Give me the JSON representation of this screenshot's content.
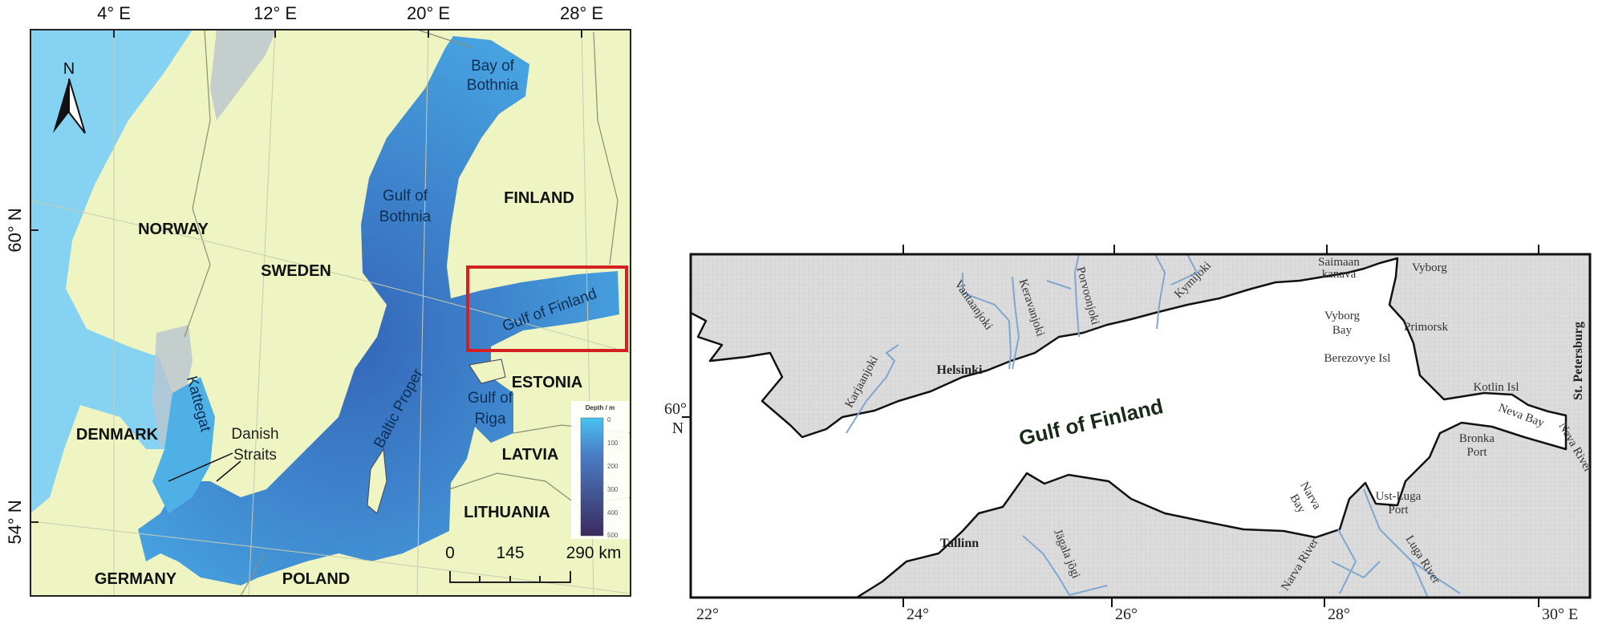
{
  "overview_map": {
    "longitude_ticks": [
      "4° E",
      "12° E",
      "20° E",
      "28° E"
    ],
    "latitude_ticks": [
      "60° N",
      "54° N"
    ],
    "north_arrow": "N",
    "countries": [
      "NORWAY",
      "SWEDEN",
      "FINLAND",
      "ESTONIA",
      "LATVIA",
      "LITHUANIA",
      "DENMARK",
      "GERMANY",
      "POLAND"
    ],
    "water_bodies": {
      "bay_of_bothnia": [
        "Bay of",
        "Bothnia"
      ],
      "gulf_of_bothnia": [
        "Gulf of",
        "Bothnia"
      ],
      "gulf_of_finland": "Gulf of Finland",
      "gulf_of_riga": [
        "Gulf of",
        "Riga"
      ],
      "baltic_proper": "Baltic Proper",
      "kattegat": "Kattegat",
      "danish_straits": [
        "Danish",
        "Straits"
      ]
    },
    "legend": {
      "title": "Depth / m",
      "ticks": [
        "0",
        "100",
        "200",
        "300",
        "400",
        "500"
      ],
      "color_min": "#49c3f0",
      "color_max": "#3b2a5e"
    },
    "scale_bar": {
      "labels": [
        "0",
        "145",
        "290 km"
      ]
    },
    "highlight_box_color": "#d42020",
    "colors": {
      "land": "#eef4c2",
      "open_sea": "#86d2f2",
      "baltic": "#3f8fd8"
    }
  },
  "detail_map": {
    "longitude_ticks": [
      "22°",
      "24°",
      "26°",
      "28°",
      "30° E"
    ],
    "latitude_tick": [
      "60°",
      "N"
    ],
    "title_label": "Gulf of Finland",
    "cities": {
      "helsinki": "Helsinki",
      "tallinn": "Tallinn",
      "vyborg": "Vyborg",
      "primorsk": "Primorsk",
      "st_petersburg": "St. Petersburg"
    },
    "places": {
      "saimaan_kanava": [
        "Saimaan",
        "kanava"
      ],
      "vyborg_bay": [
        "Vyborg",
        "Bay"
      ],
      "berezovye": "Berezovye Isl",
      "kotlin": "Kotlin Isl",
      "neva_bay": "Neva Bay",
      "bronka": [
        "Bronka",
        "Port"
      ],
      "ust_luga": [
        "Ust-Luga",
        "Port"
      ],
      "narva_bay": [
        "Narva",
        "Bay"
      ]
    },
    "rivers": {
      "karjaanjoki": "Karjaanjoki",
      "vantaanjoki": "Vantaanjoki",
      "keravanjoki": "Keravanjoki",
      "porvoonjoki": "Porvoonjoki",
      "kymijoki": "Kymijoki",
      "jagala": "Jägala jõgi",
      "narva": "Narva River",
      "luga": "Luga River",
      "neva": "Neva River"
    },
    "colors": {
      "land": "#dcdcdc",
      "sea": "#ffffff",
      "river": "#7fa7cf"
    }
  }
}
